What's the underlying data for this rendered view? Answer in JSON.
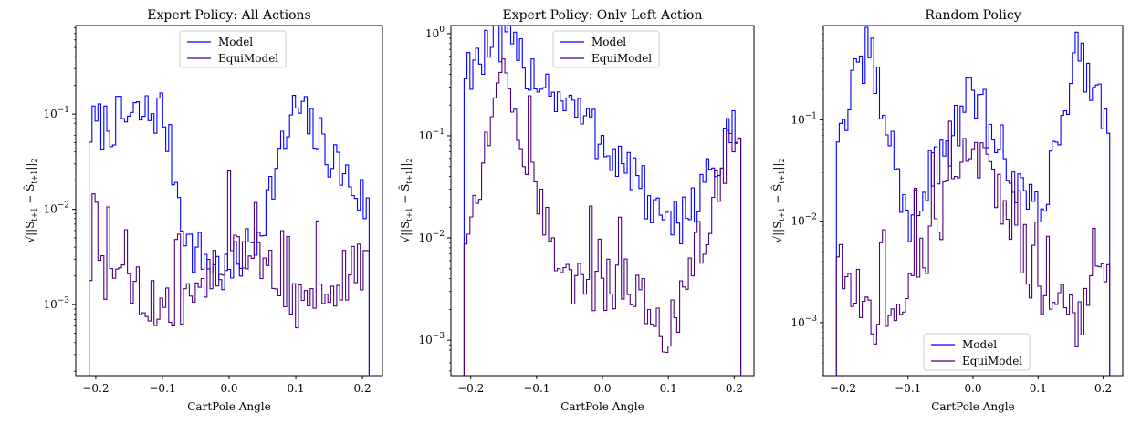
{
  "chart_data": [
    {
      "type": "histogram-step",
      "title": "Expert Policy: All Actions",
      "xlabel": "CartPole Angle",
      "ylabel": "√||S_{t+1} − Ŝ_{t+1}||_2",
      "ylabel_parts": {
        "sqrt": "√",
        "body": "||S",
        "sub1": "t+1",
        "minus": " − Ŝ",
        "sub2": "t+1",
        "close": "||",
        "sub3": "2"
      },
      "yscale": "log",
      "xlim": [
        -0.23,
        0.23
      ],
      "ylim": [
        0.00018,
        0.85
      ],
      "xticks": [
        -0.2,
        -0.1,
        0.0,
        0.1,
        0.2
      ],
      "xtick_labels": [
        "−0.2",
        "−0.1",
        "0.0",
        "0.1",
        "0.2"
      ],
      "yticks": [
        0.001,
        0.01,
        0.1
      ],
      "ytick_labels": [
        "10^-3",
        "10^-2",
        "10^-1"
      ],
      "legend_position": "top-center",
      "legend": [
        "Model",
        "EquiModel"
      ],
      "series": [
        {
          "name": "Model",
          "color": "#0000ff",
          "x": [
            -0.21,
            -0.1,
            -0.06,
            0.0,
            0.04,
            0.1,
            0.21
          ],
          "values": [
            0.07,
            0.11,
            0.004,
            0.002,
            0.005,
            0.12,
            0.01
          ]
        },
        {
          "name": "EquiModel",
          "color": "#4b0082",
          "x": [
            -0.21,
            -0.1,
            -0.06,
            0.0,
            0.04,
            0.1,
            0.21
          ],
          "values": [
            0.0025,
            0.001,
            0.001,
            0.004,
            0.003,
            0.001,
            0.0028
          ]
        }
      ]
    },
    {
      "type": "histogram-step",
      "title": "Expert Policy: Only Left Action",
      "xlabel": "CartPole Angle",
      "ylabel": "√||S_{t+1} − Ŝ_{t+1}||_2",
      "ylabel_parts": {
        "sqrt": "√",
        "body": "||S",
        "sub1": "t+1",
        "minus": " − Ŝ",
        "sub2": "t+1",
        "close": "||",
        "sub3": "2"
      },
      "yscale": "log",
      "xlim": [
        -0.23,
        0.23
      ],
      "ylim": [
        0.00045,
        1.2
      ],
      "xticks": [
        -0.2,
        -0.1,
        0.0,
        0.1,
        0.2
      ],
      "xtick_labels": [
        "−0.2",
        "−0.1",
        "0.0",
        "0.1",
        "0.2"
      ],
      "yticks": [
        0.001,
        0.01,
        0.1,
        1
      ],
      "ytick_labels": [
        "10^-3",
        "10^-2",
        "10^-1",
        "10^0"
      ],
      "legend_position": "top-center",
      "legend": [
        "Model",
        "EquiModel"
      ],
      "series": [
        {
          "name": "Model",
          "color": "#0000ff",
          "x": [
            -0.21,
            -0.15,
            -0.05,
            0.05,
            0.1,
            0.2
          ],
          "values": [
            0.47,
            0.8,
            0.2,
            0.04,
            0.01,
            0.1
          ]
        },
        {
          "name": "EquiModel",
          "color": "#4b0082",
          "x": [
            -0.21,
            -0.15,
            -0.05,
            0.05,
            0.1,
            0.2
          ],
          "values": [
            0.01,
            0.35,
            0.003,
            0.004,
            0.001,
            0.1
          ]
        }
      ]
    },
    {
      "type": "histogram-step",
      "title": "Random Policy",
      "xlabel": "CartPole Angle",
      "ylabel": "√||S_{t+1} − Ŝ_{t+1}||_2",
      "ylabel_parts": {
        "sqrt": "√",
        "body": "||S",
        "sub1": "t+1",
        "minus": " − Ŝ",
        "sub2": "t+1",
        "close": "||",
        "sub3": "2"
      },
      "yscale": "log",
      "xlim": [
        -0.23,
        0.23
      ],
      "ylim": [
        0.0003,
        0.85
      ],
      "xticks": [
        -0.2,
        -0.1,
        0.0,
        0.1,
        0.2
      ],
      "xtick_labels": [
        "−0.2",
        "−0.1",
        "0.0",
        "0.1",
        "0.2"
      ],
      "yticks": [
        0.001,
        0.01,
        0.1
      ],
      "ytick_labels": [
        "10^-3",
        "10^-2",
        "10^-1"
      ],
      "legend_position": "bottom-center",
      "legend": [
        "Model",
        "EquiModel"
      ],
      "series": [
        {
          "name": "Model",
          "color": "#0000ff",
          "x": [
            -0.21,
            -0.16,
            -0.1,
            0.0,
            0.1,
            0.16,
            0.21
          ],
          "values": [
            0.07,
            0.5,
            0.01,
            0.18,
            0.01,
            0.5,
            0.1
          ]
        },
        {
          "name": "EquiModel",
          "color": "#4b0082",
          "x": [
            -0.21,
            -0.16,
            -0.1,
            0.0,
            0.1,
            0.16,
            0.21
          ],
          "values": [
            0.006,
            0.001,
            0.002,
            0.06,
            0.002,
            0.001,
            0.006
          ]
        }
      ]
    }
  ]
}
